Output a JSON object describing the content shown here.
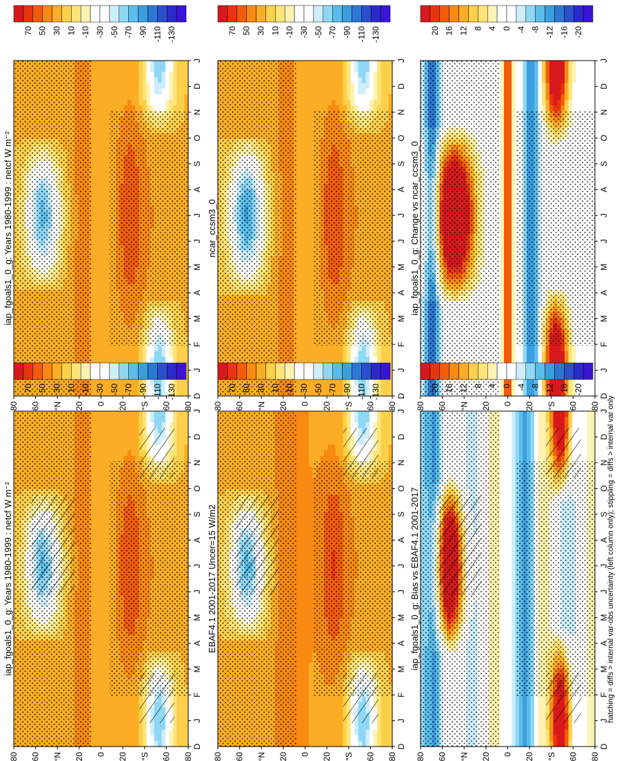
{
  "footnote": "hatching = diffs > internal var-obs uncertainty (left column only); stippling = diffs > internal var only",
  "months": [
    "D",
    "J",
    "F",
    "M",
    "A",
    "M",
    "J",
    "J",
    "A",
    "S",
    "O",
    "N",
    "D",
    "J"
  ],
  "lat_ticks": [
    "80",
    "60",
    "°N",
    "20",
    "0",
    "20",
    "°S",
    "60",
    "80"
  ],
  "colorbars": {
    "main": {
      "labels": [
        "70",
        "50",
        "30",
        "10",
        "-10",
        "-30",
        "-50",
        "-70",
        "-90",
        "-110",
        "-130"
      ],
      "colors": [
        "#d7191c",
        "#e8340f",
        "#f25c0c",
        "#f88a12",
        "#fbae25",
        "#fcd04a",
        "#fde47a",
        "#fef3b0",
        "#ffffff",
        "#ffffff",
        "#cdeefc",
        "#8fd8f5",
        "#5bbde9",
        "#3a9ee0",
        "#2d77d4",
        "#2b4fcc",
        "#2a2acb",
        "#3a14d8"
      ]
    },
    "diff": {
      "labels": [
        "20",
        "16",
        "12",
        "8",
        "4",
        "0",
        "-4",
        "-8",
        "-12",
        "-16",
        "-20"
      ],
      "colors": [
        "#d7191c",
        "#e8340f",
        "#f25c0c",
        "#f88a12",
        "#fbae25",
        "#fcd04a",
        "#fde47a",
        "#fef3b0",
        "#ffffff",
        "#ffffff",
        "#cdeefc",
        "#8fd8f5",
        "#5bbde9",
        "#3a9ee0",
        "#2d77d4",
        "#2b4fcc",
        "#2a2acb",
        "#3a14d8"
      ]
    }
  },
  "chart_data": [
    {
      "type": "heatmap",
      "title": "iap_fgoals1_0_g: Years 1980-1999 : netcf W m⁻²",
      "panel": "left-top",
      "x": [
        "D",
        "J",
        "F",
        "M",
        "A",
        "M",
        "J",
        "J",
        "A",
        "S",
        "O",
        "N",
        "D",
        "J"
      ],
      "y": [
        "80",
        "60",
        "°N",
        "20",
        "0",
        "20",
        "°S",
        "60",
        "80"
      ],
      "colorbar": "main",
      "pattern": "model",
      "hatching": true,
      "stippling": true
    },
    {
      "type": "heatmap",
      "title": "EBAF4.1 2001-2017 Uncer=15 W/m2",
      "panel": "left-middle",
      "x": [
        "D",
        "J",
        "F",
        "M",
        "A",
        "M",
        "J",
        "J",
        "A",
        "S",
        "O",
        "N",
        "D",
        "J"
      ],
      "y": [
        "80",
        "60",
        "°N",
        "20",
        "0",
        "20",
        "°S",
        "60",
        "80"
      ],
      "colorbar": "main",
      "pattern": "obs",
      "hatching": true,
      "stippling": true
    },
    {
      "type": "heatmap",
      "title": "iap_fgoals1_0_g: Bias vs EBAF4.1 2001-2017",
      "panel": "left-bottom",
      "x": [
        "D",
        "J",
        "F",
        "M",
        "A",
        "M",
        "J",
        "J",
        "A",
        "S",
        "O",
        "N",
        "D",
        "J"
      ],
      "y": [
        "80",
        "60",
        "°N",
        "20",
        "0",
        "20",
        "°S",
        "60",
        "80"
      ],
      "colorbar": "diff",
      "pattern": "bias",
      "hatching": true,
      "stippling": true
    },
    {
      "type": "heatmap",
      "title": "iap_fgoals1_0_g: Years 1980-1999 : netcf W m⁻²",
      "panel": "right-top",
      "x": [
        "D",
        "J",
        "F",
        "M",
        "A",
        "M",
        "J",
        "J",
        "A",
        "S",
        "O",
        "N",
        "D",
        "J"
      ],
      "y": [
        "80",
        "60",
        "°N",
        "20",
        "0",
        "20",
        "°S",
        "60",
        "80"
      ],
      "colorbar": "main",
      "pattern": "model",
      "hatching": false,
      "stippling": true
    },
    {
      "type": "heatmap",
      "title": "ncar_ccsm3_0",
      "panel": "right-middle",
      "x": [
        "D",
        "J",
        "F",
        "M",
        "A",
        "M",
        "J",
        "J",
        "A",
        "S",
        "O",
        "N",
        "D",
        "J"
      ],
      "y": [
        "80",
        "60",
        "°N",
        "20",
        "0",
        "20",
        "°S",
        "60",
        "80"
      ],
      "colorbar": "main",
      "pattern": "ncar",
      "hatching": false,
      "stippling": true
    },
    {
      "type": "heatmap",
      "title": "iap_fgoals1_0_g: Change vs ncar_ccsm3_0",
      "panel": "right-bottom",
      "x": [
        "D",
        "J",
        "F",
        "M",
        "A",
        "M",
        "J",
        "J",
        "A",
        "S",
        "O",
        "N",
        "D",
        "J"
      ],
      "y": [
        "80",
        "60",
        "°N",
        "20",
        "0",
        "20",
        "°S",
        "60",
        "80"
      ],
      "colorbar": "diff",
      "pattern": "change",
      "hatching": false,
      "stippling": true
    }
  ]
}
